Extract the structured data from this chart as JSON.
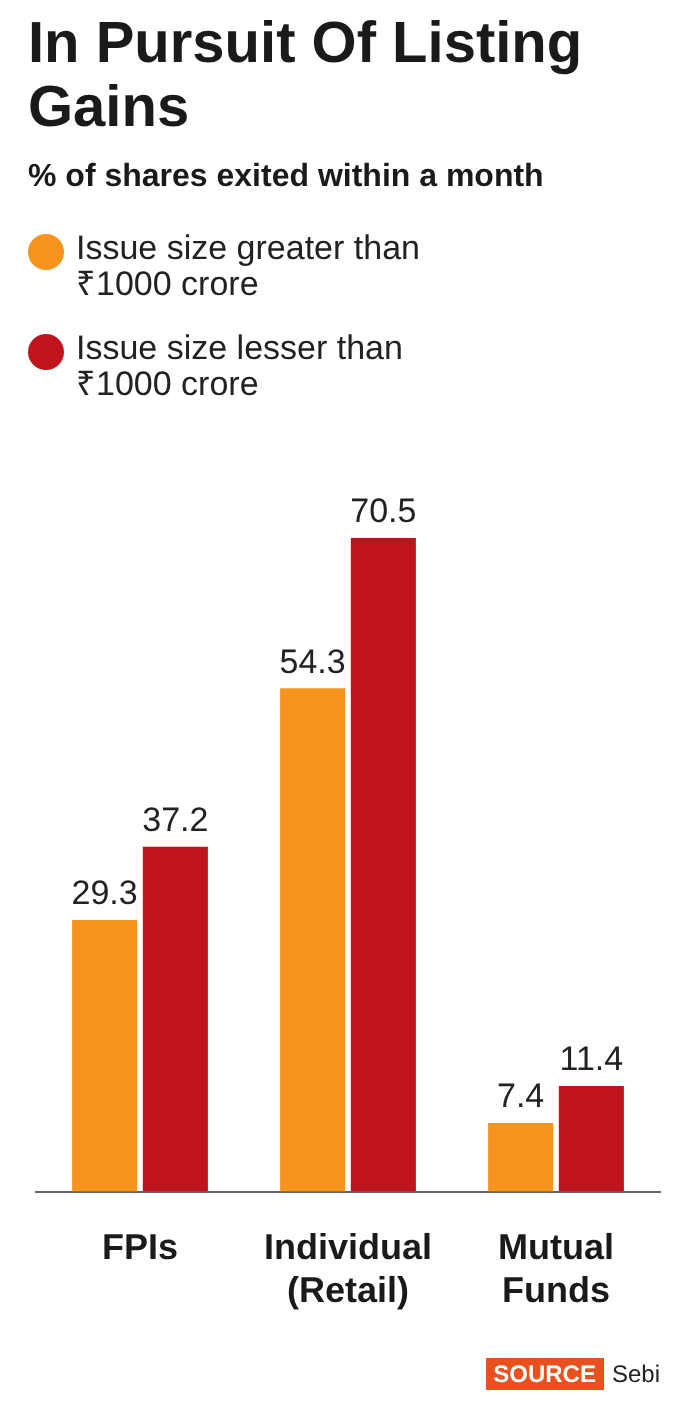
{
  "chart_data": {
    "type": "bar",
    "title": "In Pursuit Of Listing Gains",
    "subtitle": "% of shares exited within a month",
    "categories": [
      "FPIs",
      "Individual (Retail)",
      "Mutual Funds"
    ],
    "series": [
      {
        "name": "Issue size greater than ₹1000 crore",
        "color": "#f7941d",
        "values": [
          29.3,
          54.3,
          7.4
        ]
      },
      {
        "name": "Issue size lesser than ₹1000 crore",
        "color": "#c0141c",
        "values": [
          37.2,
          70.5,
          11.4
        ]
      }
    ],
    "data_labels": true,
    "legend": "top left",
    "grid": false,
    "annotations": [
      "SOURCE Sebi"
    ]
  }
}
